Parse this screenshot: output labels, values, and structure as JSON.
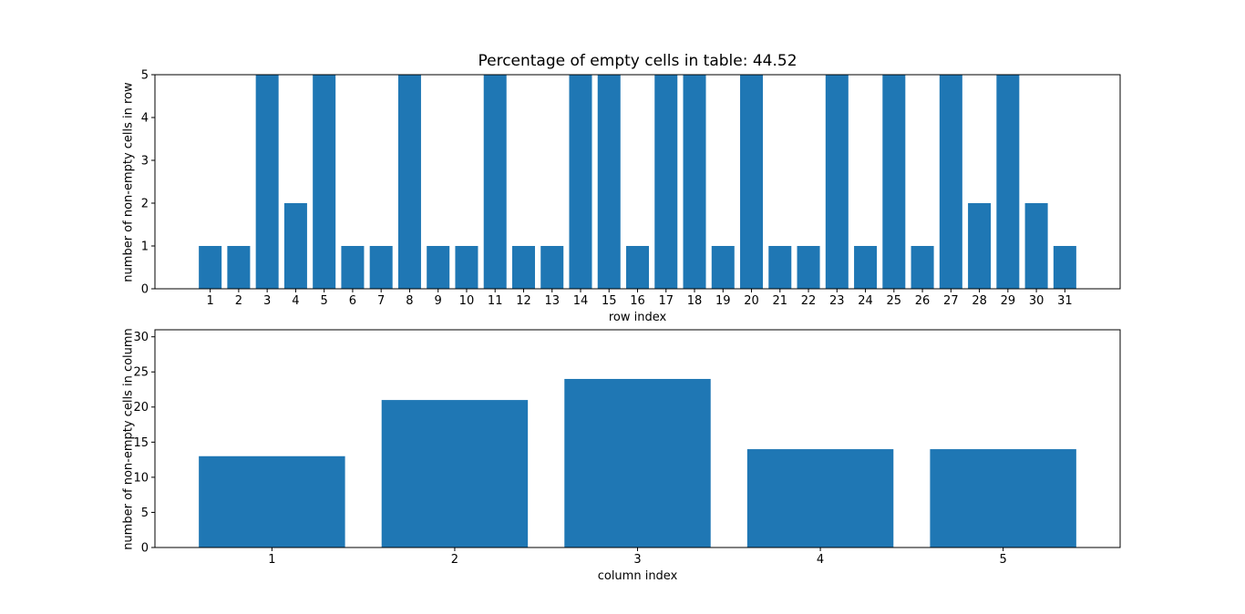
{
  "figure": {
    "background_color": "#ffffff",
    "bar_color": "#1f77b4",
    "axis_color": "#000000",
    "text_color": "#000000"
  },
  "chart_data": [
    {
      "type": "bar",
      "title": "Percentage of empty cells in table: 44.52",
      "xlabel": "row index",
      "ylabel": "number of non-empty cells in row",
      "categories": [
        1,
        2,
        3,
        4,
        5,
        6,
        7,
        8,
        9,
        10,
        11,
        12,
        13,
        14,
        15,
        16,
        17,
        18,
        19,
        20,
        21,
        22,
        23,
        24,
        25,
        26,
        27,
        28,
        29,
        30,
        31
      ],
      "values": [
        1,
        1,
        5,
        2,
        5,
        1,
        1,
        5,
        1,
        1,
        5,
        1,
        1,
        5,
        5,
        1,
        5,
        5,
        1,
        5,
        1,
        1,
        5,
        1,
        5,
        1,
        5,
        2,
        5,
        2,
        1
      ],
      "ylim": [
        0,
        5
      ],
      "yticks": [
        0,
        1,
        2,
        3,
        4,
        5
      ],
      "bar_width_fraction": 0.8,
      "grid": false,
      "legend": null
    },
    {
      "type": "bar",
      "title": "",
      "xlabel": "column index",
      "ylabel": "number of non-empty cells in column",
      "categories": [
        1,
        2,
        3,
        4,
        5
      ],
      "values": [
        13,
        21,
        24,
        14,
        14
      ],
      "ylim": [
        0,
        31
      ],
      "yticks": [
        0,
        5,
        10,
        15,
        20,
        25,
        30
      ],
      "bar_width_fraction": 0.8,
      "grid": false,
      "legend": null
    }
  ]
}
